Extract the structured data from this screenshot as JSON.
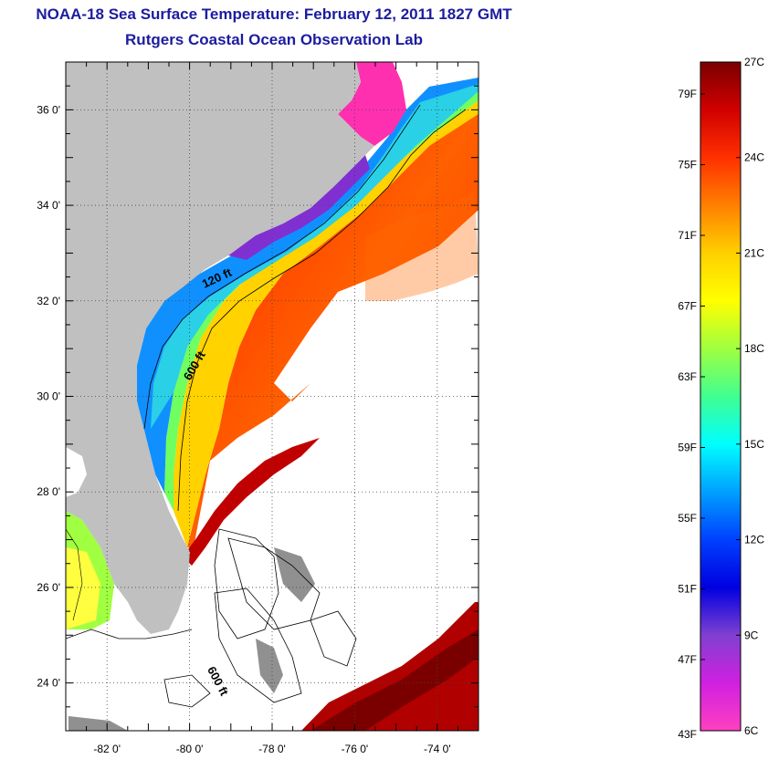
{
  "header": {
    "title": "NOAA-18 Sea Surface Temperature:  February 12, 2011 1827 GMT",
    "subtitle": "Rutgers Coastal Ocean Observation Lab"
  },
  "map": {
    "lon_range": [
      -83,
      -73
    ],
    "lat_range": [
      23,
      37
    ],
    "lon_ticks": [
      {
        "value": -82,
        "label": "-82 0'"
      },
      {
        "value": -80,
        "label": "-80 0'"
      },
      {
        "value": -78,
        "label": "-78 0'"
      },
      {
        "value": -76,
        "label": "-76 0'"
      },
      {
        "value": -74,
        "label": "-74 0'"
      }
    ],
    "lat_ticks": [
      {
        "value": 36,
        "label": "36 0'"
      },
      {
        "value": 34,
        "label": "34 0'"
      },
      {
        "value": 32,
        "label": "32 0'"
      },
      {
        "value": 30,
        "label": "30 0'"
      },
      {
        "value": 28,
        "label": "28 0'"
      },
      {
        "value": 26,
        "label": "26 0'"
      },
      {
        "value": 24,
        "label": "24 0'"
      }
    ],
    "contour_labels": [
      {
        "text": "120 ft",
        "lon": -79.3,
        "lat": 32.4,
        "rotate": -25
      },
      {
        "text": "600 ft",
        "lon": -79.8,
        "lat": 30.6,
        "rotate": -60
      },
      {
        "text": "600 ft",
        "lon": -79.4,
        "lat": 24.0,
        "rotate": 62
      }
    ],
    "land_color": "#c0c0c0",
    "grid": true
  },
  "colorbar": {
    "fahrenheit_labels": [
      "79F",
      "75F",
      "71F",
      "67F",
      "63F",
      "59F",
      "55F",
      "51F",
      "47F",
      "43F"
    ],
    "celsius_labels": [
      "27C",
      "24C",
      "21C",
      "18C",
      "15C",
      "12C",
      "9C",
      "6C"
    ],
    "stops": [
      "#7a0000",
      "#d00000",
      "#ff3000",
      "#ff8000",
      "#ffd000",
      "#ffff00",
      "#a0ff40",
      "#40ff90",
      "#00ffff",
      "#00a0ff",
      "#0040ff",
      "#0000e0",
      "#8040d0",
      "#d020e0",
      "#ff40c0"
    ]
  }
}
